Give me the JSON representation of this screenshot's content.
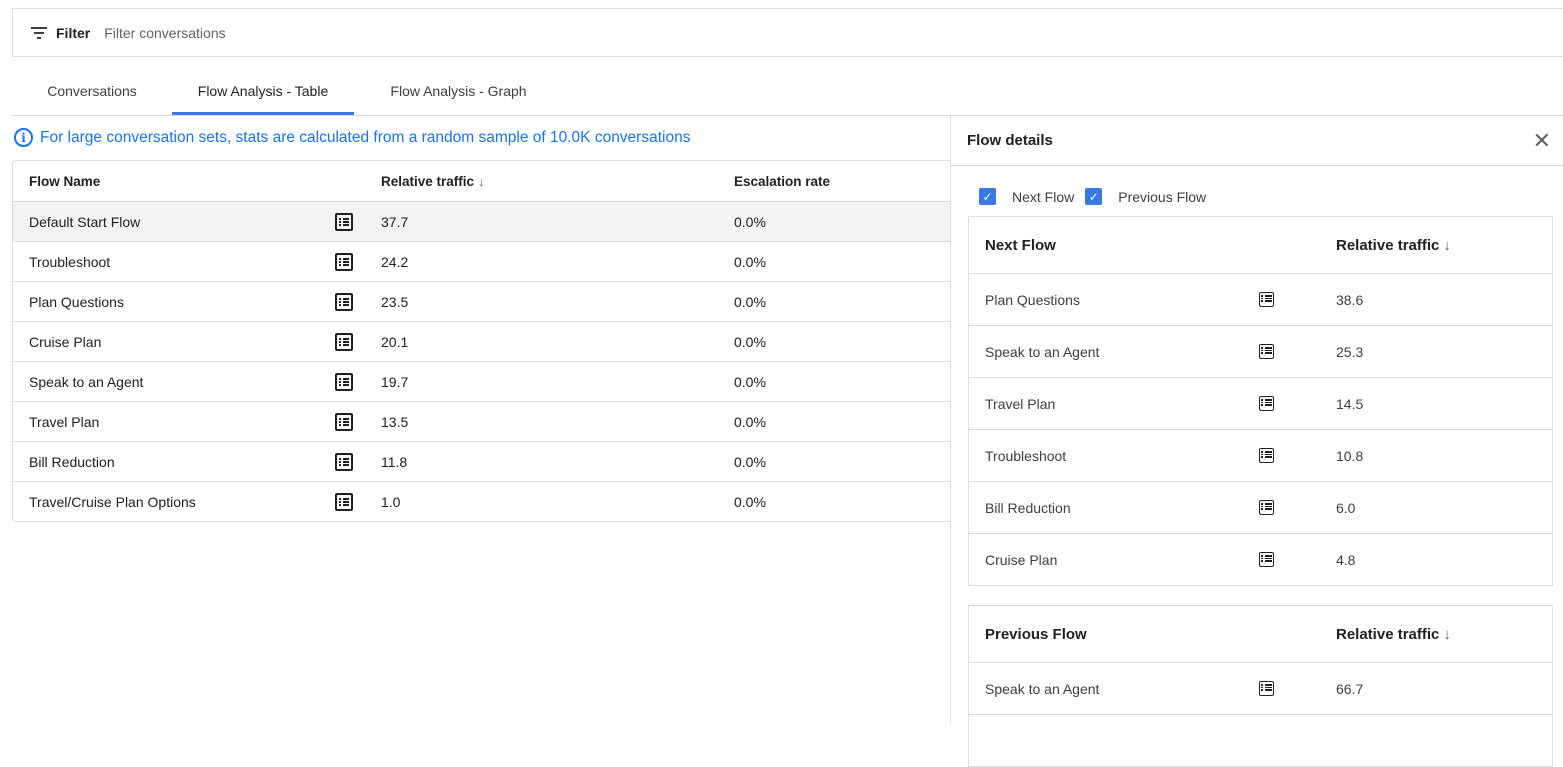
{
  "filter": {
    "label": "Filter",
    "placeholder": "Filter conversations"
  },
  "tabs": [
    {
      "label": "Conversations"
    },
    {
      "label": "Flow Analysis - Table"
    },
    {
      "label": "Flow Analysis - Graph"
    }
  ],
  "active_tab": "Flow Analysis - Table",
  "info": "For large conversation sets, stats are calculated from a random sample of 10.0K conversations",
  "accent": "#3b78e7",
  "table": {
    "headers": {
      "name": "Flow Name",
      "traffic": "Relative traffic",
      "escalation": "Escalation rate"
    },
    "sort_arrow": "↓",
    "rows": [
      {
        "name": "Default Start Flow",
        "traffic": "37.7",
        "escalation": "0.0%"
      },
      {
        "name": "Troubleshoot",
        "traffic": "24.2",
        "escalation": "0.0%"
      },
      {
        "name": "Plan Questions",
        "traffic": "23.5",
        "escalation": "0.0%"
      },
      {
        "name": "Cruise Plan",
        "traffic": "20.1",
        "escalation": "0.0%"
      },
      {
        "name": "Speak to an Agent",
        "traffic": "19.7",
        "escalation": "0.0%"
      },
      {
        "name": "Travel Plan",
        "traffic": "13.5",
        "escalation": "0.0%"
      },
      {
        "name": "Bill Reduction",
        "traffic": "11.8",
        "escalation": "0.0%"
      },
      {
        "name": "Travel/Cruise Plan Options",
        "traffic": "1.0",
        "escalation": "0.0%"
      }
    ]
  },
  "details": {
    "title": "Flow details",
    "close": "✕",
    "checks": [
      {
        "label": "Next Flow",
        "checked": true
      },
      {
        "label": "Previous Flow",
        "checked": true
      }
    ],
    "next": {
      "header": "Next Flow",
      "traffic_header": "Relative traffic",
      "rows": [
        {
          "name": "Plan Questions",
          "traffic": "38.6"
        },
        {
          "name": "Speak to an Agent",
          "traffic": "25.3"
        },
        {
          "name": "Travel Plan",
          "traffic": "14.5"
        },
        {
          "name": "Troubleshoot",
          "traffic": "10.8"
        },
        {
          "name": "Bill Reduction",
          "traffic": "6.0"
        },
        {
          "name": "Cruise Plan",
          "traffic": "4.8"
        }
      ]
    },
    "previous": {
      "header": "Previous Flow",
      "traffic_header": "Relative traffic",
      "rows": [
        {
          "name": "Speak to an Agent",
          "traffic": "66.7"
        },
        {
          "name": "",
          "traffic": ""
        }
      ]
    }
  }
}
